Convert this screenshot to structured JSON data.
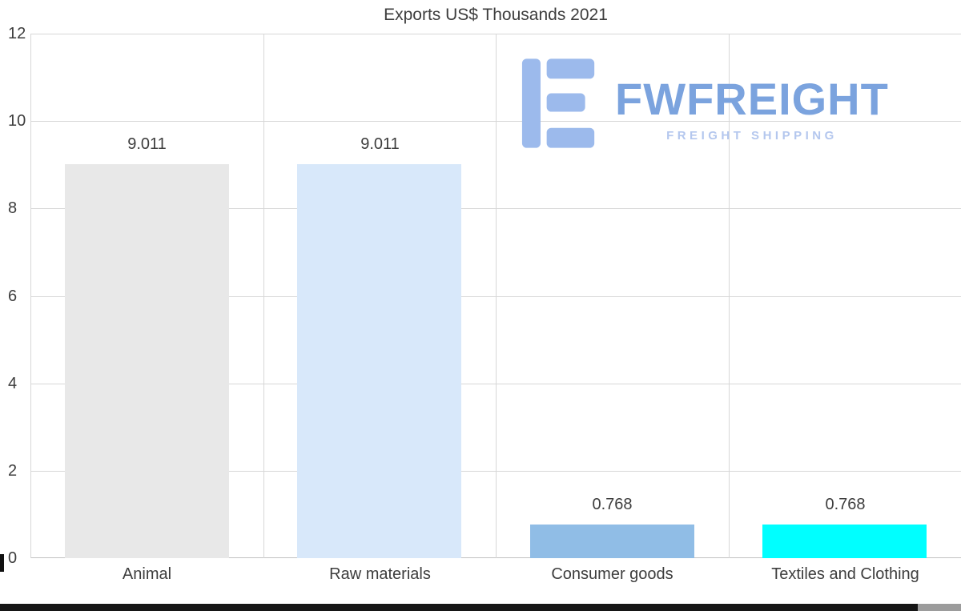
{
  "page": {
    "title": "Exports US$ Thousands 2021"
  },
  "watermark": {
    "brand": "FWFREIGHT",
    "tagline": "FREIGHT SHIPPING"
  },
  "chart_data": {
    "type": "bar",
    "title": "Exports US$ Thousands 2021",
    "categories": [
      "Animal",
      "Raw materials",
      "Consumer goods",
      "Textiles and Clothing"
    ],
    "values": [
      9.011,
      9.011,
      0.768,
      0.768
    ],
    "value_labels": [
      "9.011",
      "9.011",
      "0.768",
      "0.768"
    ],
    "bar_colors": [
      "#e8e8e8",
      "#d8e8fa",
      "#90bde6",
      "#00ffff"
    ],
    "xlabel": "",
    "ylabel": "",
    "ylim": [
      0,
      12
    ],
    "yticks": [
      0,
      2,
      4,
      6,
      8,
      10,
      12
    ],
    "grid": true,
    "legend_position": "none"
  },
  "colors": {
    "background": "#ffffff",
    "text": "#3d3d3d",
    "grid": "#d7d7d7",
    "axis_line": "#c2c2c2",
    "logo_glyph": "#9cbaec",
    "logo_text": "#7ba3de",
    "logo_tagline": "#b4c7ee",
    "progress_fill": "#161616",
    "progress_track": "#9c9c9c"
  }
}
